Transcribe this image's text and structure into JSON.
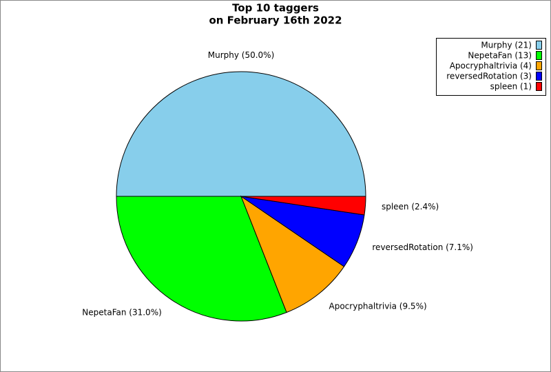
{
  "chart_data": {
    "type": "pie",
    "title": [
      "Top 10 taggers",
      "on February 16th 2022"
    ],
    "categories": [
      "Murphy",
      "NepetaFan",
      "Apocryphaltrivia",
      "reversedRotation",
      "spleen"
    ],
    "values": [
      21,
      13,
      4,
      3,
      1
    ],
    "slice_labels": [
      "Murphy (50.0%)",
      "NepetaFan (31.0%)",
      "Apocryphaltrivia (9.5%)",
      "reversedRotation (7.1%)",
      "spleen (2.4%)"
    ],
    "legend": [
      "Murphy (21)",
      "NepetaFan (13)",
      "Apocryphaltrivia (4)",
      "reversedRotation (3)",
      "spleen (1)"
    ],
    "colors": [
      "#87ceeb",
      "#00ff00",
      "#ffa500",
      "#0000ff",
      "#ff0000"
    ],
    "legend_position": "upper right"
  }
}
